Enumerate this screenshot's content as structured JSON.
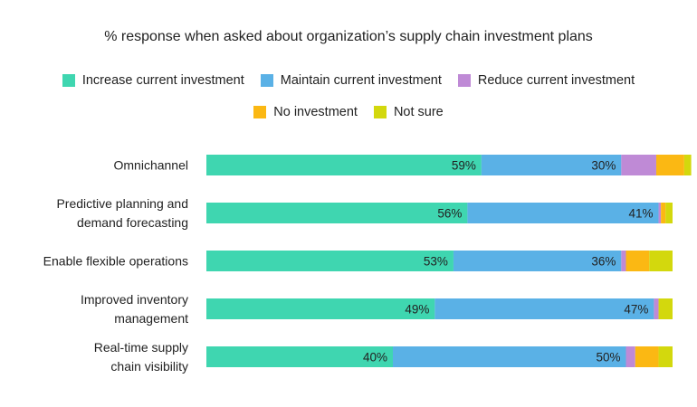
{
  "chart_data": {
    "type": "bar",
    "orientation": "horizontal",
    "stacked": true,
    "title": "% response when asked about organization’s supply chain investment plans",
    "categories": [
      [
        "Omnichannel"
      ],
      [
        "Predictive planning and",
        "demand forecasting"
      ],
      [
        "Enable flexible operations"
      ],
      [
        "Improved inventory",
        "management"
      ],
      [
        "Real-time supply",
        "chain visibility"
      ]
    ],
    "series": [
      {
        "name": "Increase current investment",
        "color": "#3fd6b0",
        "values": [
          59,
          56,
          53,
          49,
          40
        ]
      },
      {
        "name": "Maintain current investment",
        "color": "#5ab1e6",
        "values": [
          30,
          41,
          36,
          47,
          50
        ]
      },
      {
        "name": "Reduce current investment",
        "color": "#bf8ad6",
        "values": [
          7.5,
          0.5,
          1,
          1,
          2
        ]
      },
      {
        "name": "No investment",
        "color": "#fbb813",
        "values": [
          6,
          1,
          5,
          0,
          5
        ]
      },
      {
        "name": "Not sure",
        "color": "#d3d80d",
        "values": [
          1.5,
          1.5,
          5,
          3,
          3
        ]
      }
    ],
    "data_labels": [
      [
        "59%",
        "30%"
      ],
      [
        "56%",
        "41%"
      ],
      [
        "53%",
        "36%"
      ],
      [
        "49%",
        "47%"
      ],
      [
        "40%",
        "50%"
      ]
    ],
    "xlim": [
      0,
      100
    ],
    "grid": false,
    "legend_position": "top"
  }
}
